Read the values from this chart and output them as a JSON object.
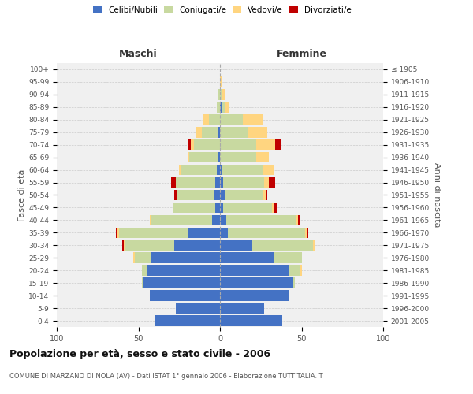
{
  "age_groups": [
    "0-4",
    "5-9",
    "10-14",
    "15-19",
    "20-24",
    "25-29",
    "30-34",
    "35-39",
    "40-44",
    "45-49",
    "50-54",
    "55-59",
    "60-64",
    "65-69",
    "70-74",
    "75-79",
    "80-84",
    "85-89",
    "90-94",
    "95-99",
    "100+"
  ],
  "birth_years": [
    "2001-2005",
    "1996-2000",
    "1991-1995",
    "1986-1990",
    "1981-1985",
    "1976-1980",
    "1971-1975",
    "1966-1970",
    "1961-1965",
    "1956-1960",
    "1951-1955",
    "1946-1950",
    "1941-1945",
    "1936-1940",
    "1931-1935",
    "1926-1930",
    "1921-1925",
    "1916-1920",
    "1911-1915",
    "1906-1910",
    "≤ 1905"
  ],
  "males": {
    "celibi": [
      40,
      27,
      43,
      47,
      45,
      42,
      28,
      20,
      5,
      3,
      4,
      3,
      2,
      1,
      0,
      1,
      0,
      0,
      0,
      0,
      0
    ],
    "coniugati": [
      0,
      0,
      0,
      1,
      3,
      10,
      30,
      42,
      37,
      26,
      22,
      24,
      22,
      18,
      16,
      10,
      7,
      2,
      1,
      0,
      0
    ],
    "vedovi": [
      0,
      0,
      0,
      0,
      0,
      1,
      1,
      1,
      1,
      0,
      0,
      0,
      1,
      1,
      2,
      4,
      3,
      0,
      0,
      0,
      0
    ],
    "divorziati": [
      0,
      0,
      0,
      0,
      0,
      0,
      1,
      1,
      0,
      0,
      2,
      3,
      0,
      0,
      2,
      0,
      0,
      0,
      0,
      0,
      0
    ]
  },
  "females": {
    "nubili": [
      38,
      27,
      42,
      45,
      42,
      33,
      20,
      5,
      4,
      2,
      3,
      2,
      1,
      0,
      0,
      0,
      0,
      1,
      0,
      0,
      0
    ],
    "coniugate": [
      0,
      0,
      0,
      1,
      7,
      17,
      37,
      47,
      43,
      30,
      23,
      25,
      25,
      22,
      22,
      17,
      14,
      2,
      1,
      0,
      0
    ],
    "vedove": [
      0,
      0,
      0,
      0,
      1,
      0,
      1,
      1,
      1,
      1,
      2,
      3,
      7,
      8,
      12,
      12,
      12,
      3,
      2,
      1,
      0
    ],
    "divorziate": [
      0,
      0,
      0,
      0,
      0,
      0,
      0,
      1,
      1,
      2,
      1,
      4,
      0,
      0,
      3,
      0,
      0,
      0,
      0,
      0,
      0
    ]
  },
  "colors": {
    "celibi": "#4472C4",
    "coniugati": "#c8d9a0",
    "vedovi": "#FFD580",
    "divorziati": "#C00000"
  },
  "xlim": 100,
  "title": "Popolazione per età, sesso e stato civile - 2006",
  "subtitle": "COMUNE DI MARZANO DI NOLA (AV) - Dati ISTAT 1° gennaio 2006 - Elaborazione TUTTITALIA.IT",
  "ylabel_left": "Fasce di età",
  "ylabel_right": "Anni di nascita",
  "xlabel_left": "Maschi",
  "xlabel_right": "Femmine",
  "bg_color": "#f0f0f0",
  "legend_labels": [
    "Celibi/Nubili",
    "Coniugati/e",
    "Vedovi/e",
    "Divorziati/e"
  ]
}
